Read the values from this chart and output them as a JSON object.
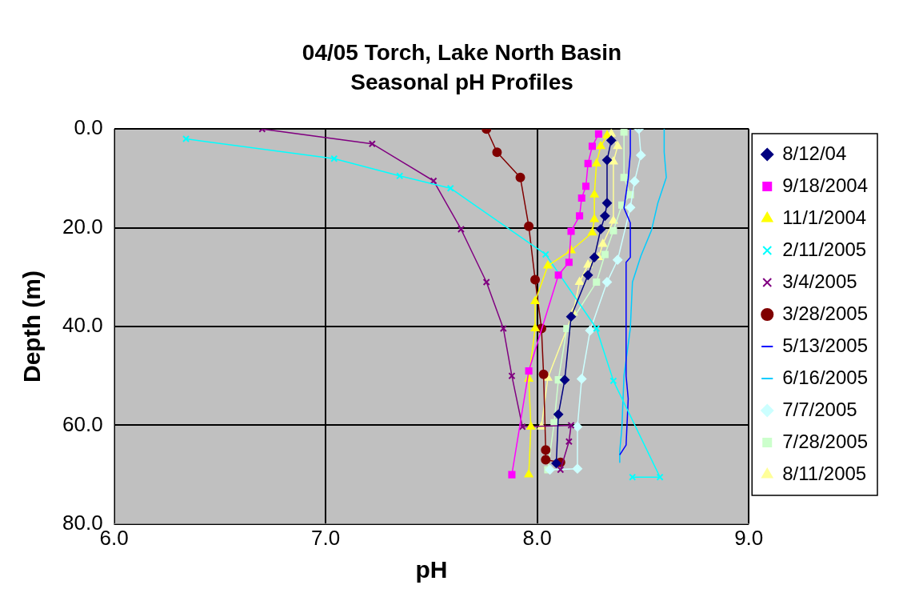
{
  "chart_data": {
    "type": "line",
    "title": "04/05 Torch, Lake North Basin",
    "subtitle": "Seasonal pH Profiles",
    "xlabel": "pH",
    "ylabel": "Depth (m)",
    "xlim": [
      6,
      9
    ],
    "xticks": [
      {
        "value": 6,
        "label": "6.0"
      },
      {
        "value": 7,
        "label": "7.0"
      },
      {
        "value": 8,
        "label": "8.0"
      },
      {
        "value": 9,
        "label": "9.0"
      }
    ],
    "ylim": [
      80,
      0
    ],
    "yticks": [
      {
        "value": 0,
        "label": "0.0"
      },
      {
        "value": 20,
        "label": "20.0"
      },
      {
        "value": 40,
        "label": "40.0"
      },
      {
        "value": 60,
        "label": "60.0"
      },
      {
        "value": 80,
        "label": "80.0"
      }
    ],
    "grid": true,
    "legend": "right",
    "line_style": "solid",
    "series": [
      {
        "name": "8/12/04",
        "color": "#000080",
        "marker": "diamond",
        "x": [
          8.35,
          8.33,
          8.33,
          8.32,
          8.3,
          8.27,
          8.24,
          8.16,
          8.13,
          8.1,
          8.09
        ],
        "values": [
          2.3,
          6.3,
          15,
          17.6,
          20.3,
          26,
          29.6,
          38,
          50.8,
          57.8,
          67.7
        ]
      },
      {
        "name": "9/18/2004",
        "color": "#ff00ff",
        "marker": "square",
        "x": [
          8.29,
          8.26,
          8.24,
          8.23,
          8.21,
          8.2,
          8.16,
          8.15,
          8.1,
          7.96,
          7.88
        ],
        "values": [
          1,
          3.5,
          7,
          11.6,
          14,
          17.6,
          20.7,
          27,
          29.6,
          49,
          70
        ]
      },
      {
        "name": "11/1/2004",
        "color": "#ffff00",
        "marker": "triangle",
        "x": [
          8.33,
          8.3,
          8.28,
          8.27,
          8.27,
          8.26,
          8.16,
          8.05,
          7.99,
          7.99,
          7.96,
          7.97,
          7.96
        ],
        "values": [
          1.3,
          3.5,
          7,
          13.3,
          18.3,
          21,
          24.6,
          27.7,
          34.9,
          40.4,
          50.6,
          60.3,
          70
        ]
      },
      {
        "name": "2/11/2005",
        "color": "#00ffff",
        "marker": "cross",
        "x": [
          6.34,
          7.04,
          7.35,
          7.59,
          8.04,
          8.28,
          8.36,
          8.58,
          8.45
        ],
        "values": [
          2,
          6,
          9.5,
          12,
          25.4,
          40.4,
          51,
          70.5,
          70.5
        ]
      },
      {
        "name": "3/4/2005",
        "color": "#800080",
        "marker": "cross",
        "x": [
          6.7,
          7.22,
          7.51,
          7.64,
          7.76,
          7.84,
          7.88,
          7.93,
          8.16,
          8.15,
          8.11
        ],
        "values": [
          0,
          3,
          10.5,
          20.3,
          31,
          40.4,
          50,
          60.3,
          60,
          63.3,
          69
        ]
      },
      {
        "name": "3/28/2005",
        "color": "#800000",
        "marker": "circle",
        "x": [
          7.76,
          7.81,
          7.92,
          7.96,
          7.99,
          8.02,
          8.03,
          8.04,
          8.04,
          8.11
        ],
        "values": [
          0,
          4.7,
          9.8,
          19.7,
          30.5,
          40.4,
          49.7,
          65,
          67,
          67.5
        ]
      },
      {
        "name": "5/13/2005",
        "color": "#0000ff",
        "marker": "none",
        "x": [
          8.44,
          8.44,
          8.43,
          8.41,
          8.42,
          8.44,
          8.44,
          8.42,
          8.42,
          8.43,
          8.42,
          8.39
        ],
        "values": [
          0,
          5,
          10,
          16,
          17,
          19,
          26,
          27,
          50,
          54.6,
          64,
          66
        ]
      },
      {
        "name": "6/16/2005",
        "color": "#00ccff",
        "marker": "none",
        "x": [
          8.6,
          8.6,
          8.61,
          8.57,
          8.54,
          8.49,
          8.45,
          8.44,
          8.41,
          8.4,
          8.39,
          8.39
        ],
        "values": [
          0,
          4.7,
          9.8,
          15,
          20.5,
          25.7,
          31,
          40.4,
          50,
          60.6,
          65.2,
          67.5
        ]
      },
      {
        "name": "7/7/2005",
        "color": "#ccffff",
        "marker": "diamond",
        "x": [
          8.48,
          8.49,
          8.46,
          8.44,
          8.38,
          8.33,
          8.25,
          8.21,
          8.19,
          8.19,
          8.06
        ],
        "values": [
          0,
          5.3,
          10.6,
          15.9,
          26.5,
          31,
          40.8,
          50.6,
          60.3,
          68.8,
          69
        ]
      },
      {
        "name": "7/28/2005",
        "color": "#ccffcc",
        "marker": "square",
        "x": [
          8.41,
          8.41,
          8.44,
          8.4,
          8.36,
          8.32,
          8.28,
          8.14,
          8.1,
          8.08,
          8.05
        ],
        "values": [
          0.6,
          9.8,
          13.3,
          15.4,
          20.6,
          25.4,
          31,
          40.4,
          50.8,
          59.5,
          69
        ]
      },
      {
        "name": "8/11/2005",
        "color": "#ffff99",
        "marker": "triangle",
        "x": [
          8.35,
          8.38,
          8.36,
          8.36,
          8.31,
          8.29,
          8.24,
          8.2,
          8.17,
          8.05,
          8.02
        ],
        "values": [
          1,
          3.5,
          6.6,
          18.6,
          23.3,
          26,
          27.5,
          31,
          37.2,
          50.4,
          60.3
        ]
      }
    ]
  }
}
